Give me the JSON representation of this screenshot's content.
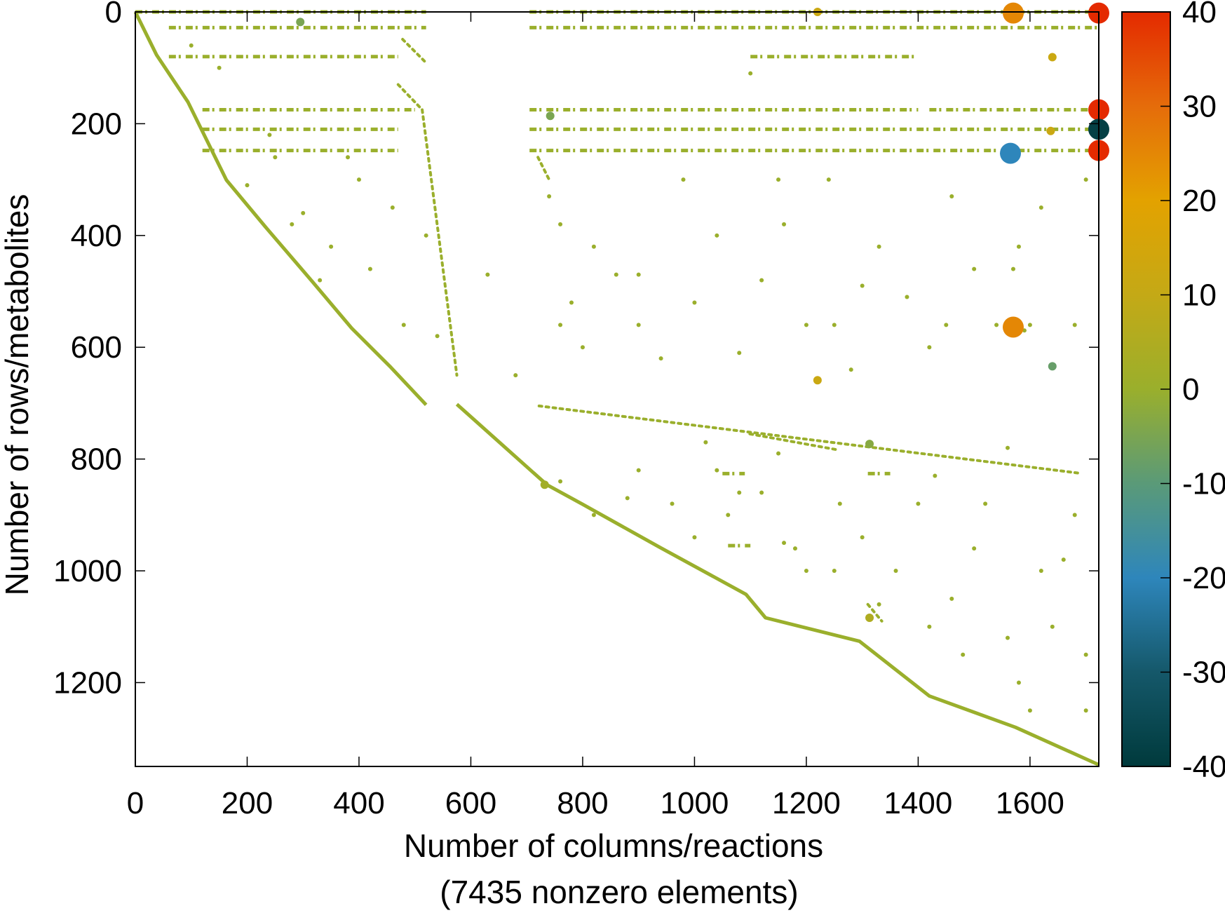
{
  "chart_data": {
    "type": "scatter",
    "subtype": "sparsity-pattern",
    "xlabel": "Number of columns/reactions",
    "xlabel_line2": "(7435 nonzero elements)",
    "ylabel": "Number of rows/metabolites",
    "xlim": [
      0,
      1723
    ],
    "ylim": [
      1350,
      0
    ],
    "y_inverted": true,
    "xticks": [
      0,
      200,
      400,
      600,
      800,
      1000,
      1200,
      1400,
      1600
    ],
    "yticks": [
      0,
      200,
      400,
      600,
      800,
      1000,
      1200
    ],
    "grid": false,
    "colorbar": {
      "range": [
        -40,
        40
      ],
      "ticks": [
        40,
        30,
        20,
        10,
        0,
        -10,
        -20,
        -30,
        -40
      ],
      "colormap": [
        {
          "value": -40,
          "color": "#003a3c"
        },
        {
          "value": -30,
          "color": "#15586a"
        },
        {
          "value": -20,
          "color": "#2e86bb"
        },
        {
          "value": -10,
          "color": "#5a9a78"
        },
        {
          "value": 0,
          "color": "#9aaf2c"
        },
        {
          "value": 10,
          "color": "#c4a916"
        },
        {
          "value": 20,
          "color": "#e3a200"
        },
        {
          "value": 30,
          "color": "#e56c0a"
        },
        {
          "value": 40,
          "color": "#e42a00"
        }
      ],
      "placement": "right"
    },
    "default_value_color": "#9aaf2c",
    "diagonal_left": [
      [
        0,
        0
      ],
      [
        38,
        77
      ],
      [
        94,
        161
      ],
      [
        163,
        301
      ],
      [
        233,
        385
      ],
      [
        317,
        483
      ],
      [
        387,
        566
      ],
      [
        457,
        636
      ],
      [
        520,
        703
      ]
    ],
    "diagonal_right": [
      [
        575,
        702
      ],
      [
        736,
        846
      ],
      [
        800,
        881
      ],
      [
        938,
        958
      ],
      [
        1092,
        1042
      ],
      [
        1127,
        1084
      ],
      [
        1295,
        1126
      ],
      [
        1420,
        1224
      ],
      [
        1574,
        1280
      ],
      [
        1723,
        1347
      ]
    ],
    "line_segments": [
      [
        [
          513,
          175
        ],
        [
          575,
          650
        ]
      ],
      [
        [
          478,
          49
        ],
        [
          520,
          91
        ]
      ],
      [
        [
          470,
          130
        ],
        [
          513,
          175
        ]
      ],
      [
        [
          722,
          705
        ],
        [
          1686,
          825
        ]
      ],
      [
        [
          1099,
          755
        ],
        [
          1253,
          783
        ]
      ],
      [
        [
          720,
          260
        ],
        [
          740,
          300
        ]
      ],
      [
        [
          1310,
          1060
        ],
        [
          1335,
          1090
        ]
      ]
    ],
    "row_bands": [
      {
        "row": 0,
        "cols": [
          [
            0,
            520
          ],
          [
            705,
            1723
          ]
        ]
      },
      {
        "row": 28,
        "cols": [
          [
            60,
            520
          ],
          [
            705,
            1723
          ]
        ]
      },
      {
        "row": 80,
        "cols": [
          [
            60,
            470
          ],
          [
            1100,
            1400
          ]
        ]
      },
      {
        "row": 175,
        "cols": [
          [
            120,
            500
          ],
          [
            705,
            1400
          ],
          [
            1420,
            1723
          ]
        ]
      },
      {
        "row": 210,
        "cols": [
          [
            120,
            470
          ],
          [
            705,
            1723
          ]
        ]
      },
      {
        "row": 248,
        "cols": [
          [
            120,
            470
          ],
          [
            705,
            1723
          ]
        ]
      },
      {
        "row": 826,
        "cols": [
          [
            1050,
            1090
          ],
          [
            1310,
            1350
          ]
        ]
      },
      {
        "row": 955,
        "cols": [
          [
            1060,
            1100
          ]
        ]
      }
    ],
    "points": [
      [
        630,
        470
      ],
      [
        680,
        650
      ],
      [
        740,
        330
      ],
      [
        760,
        380
      ],
      [
        780,
        520
      ],
      [
        800,
        600
      ],
      [
        820,
        420
      ],
      [
        860,
        470
      ],
      [
        900,
        560
      ],
      [
        940,
        620
      ],
      [
        980,
        300
      ],
      [
        1000,
        520
      ],
      [
        1040,
        400
      ],
      [
        1080,
        610
      ],
      [
        1120,
        480
      ],
      [
        1160,
        380
      ],
      [
        1200,
        560
      ],
      [
        1240,
        300
      ],
      [
        1280,
        640
      ],
      [
        1330,
        420
      ],
      [
        1380,
        510
      ],
      [
        1420,
        600
      ],
      [
        1460,
        330
      ],
      [
        1500,
        460
      ],
      [
        1540,
        560
      ],
      [
        1580,
        420
      ],
      [
        1620,
        350
      ],
      [
        1680,
        560
      ],
      [
        1700,
        300
      ],
      [
        760,
        840
      ],
      [
        820,
        900
      ],
      [
        880,
        870
      ],
      [
        960,
        880
      ],
      [
        1000,
        940
      ],
      [
        1060,
        900
      ],
      [
        1120,
        860
      ],
      [
        1160,
        950
      ],
      [
        1200,
        1000
      ],
      [
        1260,
        880
      ],
      [
        1300,
        940
      ],
      [
        1360,
        1000
      ],
      [
        1400,
        880
      ],
      [
        1460,
        1050
      ],
      [
        1500,
        960
      ],
      [
        1560,
        1120
      ],
      [
        1620,
        1000
      ],
      [
        1680,
        900
      ],
      [
        1700,
        1150
      ],
      [
        1580,
        1200
      ],
      [
        1640,
        1100
      ],
      [
        200,
        310
      ],
      [
        250,
        260
      ],
      [
        300,
        360
      ],
      [
        350,
        420
      ],
      [
        400,
        300
      ],
      [
        420,
        460
      ],
      [
        460,
        350
      ],
      [
        480,
        560
      ],
      [
        520,
        400
      ],
      [
        540,
        580
      ],
      [
        280,
        380
      ],
      [
        330,
        480
      ],
      [
        240,
        220
      ],
      [
        150,
        100
      ],
      [
        100,
        60
      ],
      [
        380,
        260
      ],
      [
        1020,
        770
      ],
      [
        1150,
        790
      ],
      [
        1180,
        960
      ],
      [
        1250,
        1000
      ],
      [
        1330,
        1060
      ],
      [
        1430,
        830
      ],
      [
        1520,
        880
      ],
      [
        1560,
        780
      ],
      [
        1660,
        980
      ],
      [
        1700,
        1250
      ],
      [
        1600,
        1250
      ],
      [
        1480,
        1150
      ],
      [
        1420,
        1100
      ],
      [
        900,
        820
      ],
      [
        1040,
        820
      ],
      [
        1080,
        860
      ],
      [
        1100,
        110
      ],
      [
        760,
        560
      ],
      [
        1250,
        560
      ],
      [
        1450,
        560
      ],
      [
        1600,
        560
      ],
      [
        900,
        470
      ],
      [
        1300,
        490
      ],
      [
        1150,
        300
      ],
      [
        1570,
        460
      ],
      [
        1590,
        570
      ]
    ],
    "highlighted_points": [
      {
        "col": 1570,
        "row": 2,
        "value": 25
      },
      {
        "col": 1723,
        "row": 2,
        "value": 40
      },
      {
        "col": 1723,
        "row": 175,
        "value": 40
      },
      {
        "col": 1723,
        "row": 210,
        "value": -38
      },
      {
        "col": 1723,
        "row": 248,
        "value": 40
      },
      {
        "col": 1565,
        "row": 253,
        "value": -20
      },
      {
        "col": 1570,
        "row": 564,
        "value": 25
      },
      {
        "col": 1220,
        "row": 0,
        "value": 12
      },
      {
        "col": 1220,
        "row": 659,
        "value": 12
      },
      {
        "col": 1640,
        "row": 634,
        "value": -8
      },
      {
        "col": 1640,
        "row": 81,
        "value": 12
      },
      {
        "col": 1637,
        "row": 213,
        "value": 12
      },
      {
        "col": 742,
        "row": 186,
        "value": -5
      },
      {
        "col": 295,
        "row": 18,
        "value": -5
      },
      {
        "col": 1313,
        "row": 773,
        "value": -3
      },
      {
        "col": 1313,
        "row": 1084,
        "value": 5
      },
      {
        "col": 732,
        "row": 846,
        "value": 2
      }
    ]
  }
}
